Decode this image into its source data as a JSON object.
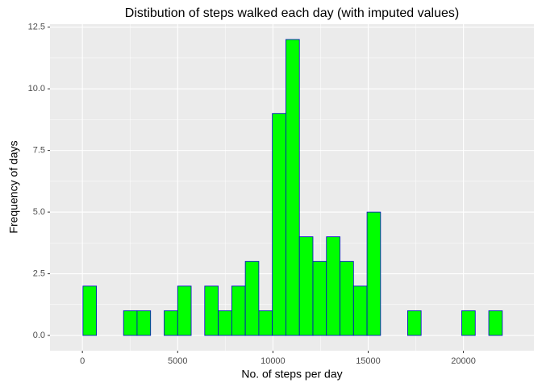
{
  "chart_data": {
    "type": "histogram",
    "title": "Distibution of steps walked each day (with imputed values)",
    "x_label": "No. of steps per day",
    "y_label": "Frequency of days",
    "bins": [
      -680,
      30,
      740,
      1450,
      2160,
      2870,
      3580,
      4290,
      5000,
      5710,
      6420,
      7130,
      7840,
      8550,
      9260,
      9970,
      10680,
      11390,
      12100,
      12810,
      13520,
      14230,
      14940,
      15650,
      16360,
      17070,
      17780,
      18490,
      19200,
      19910,
      20620,
      21330,
      22040,
      22750
    ],
    "values": [
      0,
      2,
      0,
      0,
      1,
      1,
      0,
      1,
      2,
      0,
      2,
      1,
      2,
      3,
      1,
      9,
      12,
      4,
      3,
      4,
      3,
      2,
      5,
      0,
      0,
      1,
      0,
      0,
      0,
      1,
      0,
      1,
      0
    ],
    "color": "#00ff00",
    "edge_color": "#0000cd",
    "xlim": [
      -1700,
      23700
    ],
    "xticks": [
      0,
      5000,
      10000,
      15000,
      20000
    ],
    "ylim": [
      -0.62,
      12.62
    ],
    "yticks": [
      {
        "value": 0,
        "label": "0.0"
      },
      {
        "value": 2.5,
        "label": "2.5"
      },
      {
        "value": 5,
        "label": "5.0"
      },
      {
        "value": 7.5,
        "label": "7.5"
      },
      {
        "value": 10,
        "label": "10.0"
      },
      {
        "value": 12.5,
        "label": "12.5"
      }
    ],
    "grid": true
  }
}
